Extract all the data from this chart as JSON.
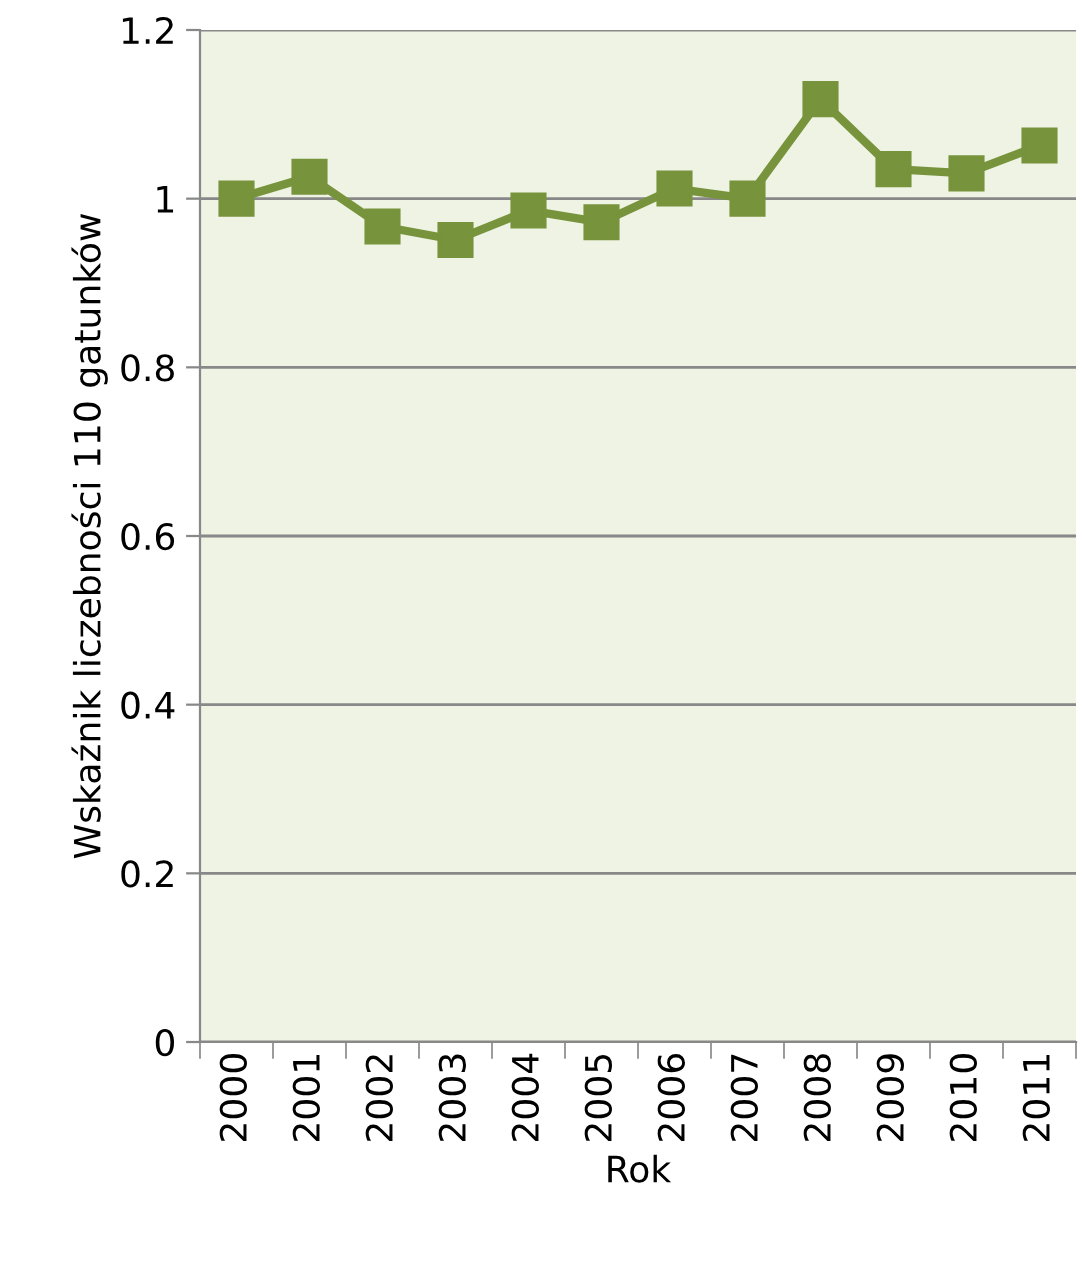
{
  "chart_data": {
    "type": "line",
    "xlabel": "Rok",
    "ylabel": "Wskaźnik liczebności 110 gatunków",
    "categories": [
      "2000",
      "2001",
      "2002",
      "2003",
      "2004",
      "2005",
      "2006",
      "2007",
      "2008",
      "2009",
      "2010",
      "2011"
    ],
    "series": [
      {
        "color": "#77933c",
        "values": [
          1.0,
          1.026,
          0.967,
          0.951,
          0.986,
          0.972,
          1.012,
          1.0,
          1.118,
          1.035,
          1.03,
          1.063
        ]
      }
    ],
    "ylim": [
      0,
      1.2
    ],
    "yticks": [
      0,
      0.2,
      0.4,
      0.6,
      0.8,
      1,
      1.2
    ],
    "grid": "y",
    "marker": "square",
    "line_style": "solid",
    "legend": false
  }
}
